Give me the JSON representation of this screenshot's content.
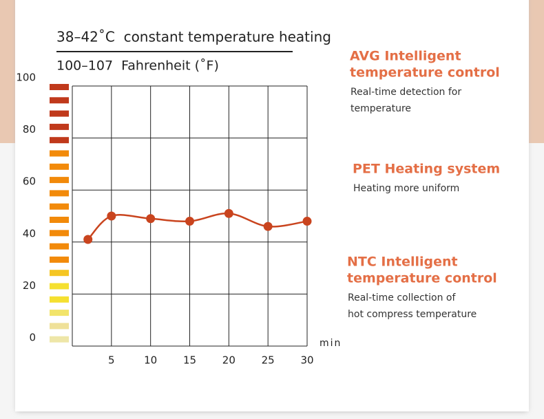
{
  "chart_data": {
    "type": "line",
    "title": "38–42˚C  constant temperature heating",
    "subtitle": "100–107  Fahrenheit (˚F)",
    "x_unit": "min",
    "x": [
      2,
      5,
      10,
      15,
      20,
      25,
      30
    ],
    "values": [
      41,
      50,
      49,
      48,
      51,
      46,
      48
    ],
    "color": "#c9441e",
    "xlim": [
      0,
      30
    ],
    "xticks": [
      5,
      10,
      15,
      20,
      25,
      30
    ],
    "ylim": [
      0,
      100
    ],
    "yticks": [
      0,
      20,
      40,
      60,
      80,
      100
    ],
    "grid": true
  },
  "features": [
    {
      "title": [
        "AVG Intelligent",
        "temperature control"
      ],
      "text": [
        "Real-time detection for",
        "temperature"
      ]
    },
    {
      "title": [
        "PET Heating system"
      ],
      "text": [
        "Heating more uniform"
      ]
    },
    {
      "title": [
        "NTC Intelligent",
        "temperature control"
      ],
      "text": [
        "Real-time collection of",
        "hot compress temperature"
      ]
    }
  ]
}
